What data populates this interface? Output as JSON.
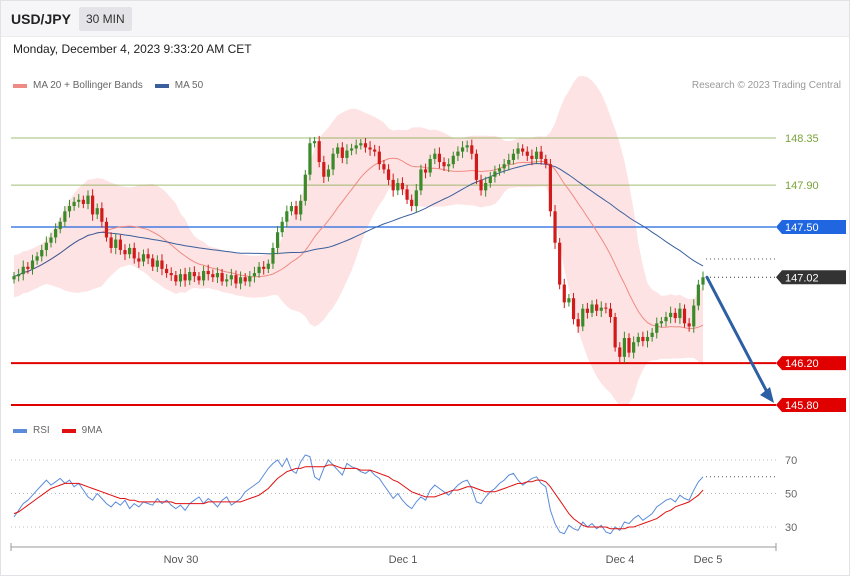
{
  "header": {
    "symbol": "USD/JPY",
    "timeframe": "30 MIN"
  },
  "datetime": "Monday, December 4, 2023 9:33:20 AM CET",
  "legend_main": [
    {
      "label": "MA 20 + Bollinger Bands",
      "color": "#f08a84"
    },
    {
      "label": "MA 50",
      "color": "#3a5f9c"
    }
  ],
  "credit": "Research © 2023 Trading Central",
  "legend_rsi": [
    {
      "label": "RSI",
      "color": "#5b8bd9"
    },
    {
      "label": "9MA",
      "color": "#e01010"
    }
  ],
  "chart_data": [
    {
      "type": "candlestick",
      "symbol": "USD/JPY",
      "timeframe": "30 MIN",
      "x_ticks": [
        "Nov 30",
        "Dec 1",
        "Dec 4",
        "Dec 5"
      ],
      "ylim": [
        145.55,
        148.55
      ],
      "levels": [
        {
          "value": 148.35,
          "label": "148.35",
          "color": "#7aa23a"
        },
        {
          "value": 147.9,
          "label": "147.90",
          "color": "#7aa23a"
        },
        {
          "value": 147.5,
          "label": "147.50",
          "color": "#1f66e0"
        },
        {
          "value": 147.02,
          "label": "147.02",
          "color": "#333333"
        },
        {
          "value": 146.2,
          "label": "146.20",
          "color": "#e00000"
        },
        {
          "value": 145.8,
          "label": "145.80",
          "color": "#e00000"
        }
      ],
      "forecast_arrow": {
        "from": 147.02,
        "to": 145.8,
        "color": "#2c5fa3"
      },
      "close": [
        147.03,
        147.05,
        147.12,
        147.1,
        147.18,
        147.22,
        147.28,
        147.35,
        147.4,
        147.48,
        147.55,
        147.65,
        147.7,
        147.74,
        147.76,
        147.72,
        147.8,
        147.62,
        147.68,
        147.55,
        147.4,
        147.3,
        147.38,
        147.28,
        147.24,
        147.3,
        147.2,
        147.17,
        147.24,
        147.2,
        147.12,
        147.18,
        147.1,
        147.06,
        147.04,
        146.98,
        147.05,
        146.99,
        147.07,
        147.03,
        146.99,
        147.08,
        147.05,
        147.02,
        147.06,
        146.98,
        147.0,
        147.04,
        146.96,
        147.02,
        146.98,
        147.03,
        147.06,
        147.12,
        147.1,
        147.15,
        147.3,
        147.45,
        147.55,
        147.65,
        147.7,
        147.62,
        147.75,
        148.0,
        148.3,
        148.32,
        148.12,
        147.98,
        148.05,
        148.2,
        148.26,
        148.16,
        148.23,
        148.25,
        148.28,
        148.3,
        148.26,
        148.24,
        148.22,
        148.1,
        148.05,
        147.95,
        147.85,
        147.92,
        147.86,
        147.76,
        147.7,
        147.85,
        148.05,
        148.02,
        148.15,
        148.2,
        148.12,
        148.08,
        148.1,
        148.18,
        148.22,
        148.26,
        148.28,
        148.2,
        147.95,
        147.85,
        147.92,
        147.98,
        148.03,
        148.06,
        148.1,
        148.14,
        148.2,
        148.25,
        148.22,
        148.18,
        148.15,
        148.22,
        148.15,
        148.1,
        147.65,
        147.35,
        146.95,
        146.78,
        146.82,
        146.62,
        146.55,
        146.72,
        146.68,
        146.76,
        146.7,
        146.73,
        146.72,
        146.64,
        146.35,
        146.26,
        146.44,
        146.3,
        146.4,
        146.45,
        146.41,
        146.45,
        146.49,
        146.58,
        146.6,
        146.64,
        146.68,
        146.63,
        146.72,
        146.58,
        146.55,
        146.75,
        146.95,
        147.02
      ],
      "rsi": {
        "ylim": [
          20,
          80
        ],
        "levels": [
          70,
          50,
          30
        ],
        "rsi": [
          36,
          40,
          44,
          46,
          49,
          52,
          55,
          58,
          55,
          57,
          59,
          56,
          58,
          54,
          56,
          52,
          48,
          46,
          50,
          47,
          44,
          42,
          45,
          43,
          46,
          41,
          44,
          42,
          45,
          44,
          43,
          47,
          44,
          46,
          43,
          41,
          43,
          40,
          44,
          46,
          48,
          44,
          47,
          45,
          42,
          46,
          48,
          43,
          45,
          47,
          51,
          53,
          55,
          57,
          61,
          65,
          68,
          70,
          66,
          71,
          64,
          62,
          69,
          73,
          72,
          60,
          58,
          65,
          70,
          67,
          64,
          61,
          68,
          66,
          65,
          63,
          62,
          64,
          61,
          59,
          55,
          51,
          47,
          50,
          46,
          43,
          41,
          45,
          48,
          46,
          52,
          55,
          53,
          51,
          49,
          52,
          55,
          57,
          58,
          53,
          45,
          44,
          48,
          51,
          53,
          56,
          58,
          61,
          62,
          58,
          55,
          57,
          59,
          60,
          56,
          54,
          40,
          32,
          27,
          26,
          31,
          29,
          28,
          33,
          30,
          32,
          29,
          31,
          27,
          26,
          30,
          28,
          33,
          32,
          35,
          37,
          34,
          36,
          38,
          42,
          44,
          46,
          47,
          45,
          49,
          47,
          46,
          52,
          57,
          60
        ],
        "ma9": [
          38,
          39,
          41,
          43,
          45,
          47,
          49,
          51,
          53,
          54,
          55,
          56,
          56,
          56,
          56,
          55,
          54,
          53,
          52,
          51,
          50,
          49,
          48,
          47,
          47,
          46,
          46,
          45,
          45,
          45,
          45,
          45,
          45,
          45,
          45,
          44,
          44,
          44,
          44,
          44,
          44,
          44,
          45,
          45,
          45,
          45,
          45,
          45,
          45,
          45,
          46,
          47,
          48,
          49,
          51,
          53,
          56,
          59,
          61,
          63,
          64,
          65,
          65,
          66,
          66,
          66,
          66,
          66,
          67,
          67,
          66,
          65,
          65,
          65,
          65,
          64,
          64,
          64,
          63,
          62,
          61,
          60,
          58,
          57,
          55,
          53,
          51,
          50,
          49,
          48,
          48,
          48,
          49,
          50,
          51,
          52,
          52,
          53,
          54,
          54,
          53,
          52,
          51,
          51,
          51,
          52,
          53,
          54,
          55,
          56,
          56,
          57,
          57,
          58,
          58,
          57,
          54,
          50,
          46,
          42,
          38,
          35,
          33,
          31,
          30,
          30,
          30,
          30,
          30,
          29,
          29,
          29,
          29,
          30,
          30,
          31,
          32,
          33,
          34,
          35,
          37,
          39,
          40,
          42,
          43,
          44,
          45,
          47,
          49,
          52
        ]
      }
    }
  ]
}
